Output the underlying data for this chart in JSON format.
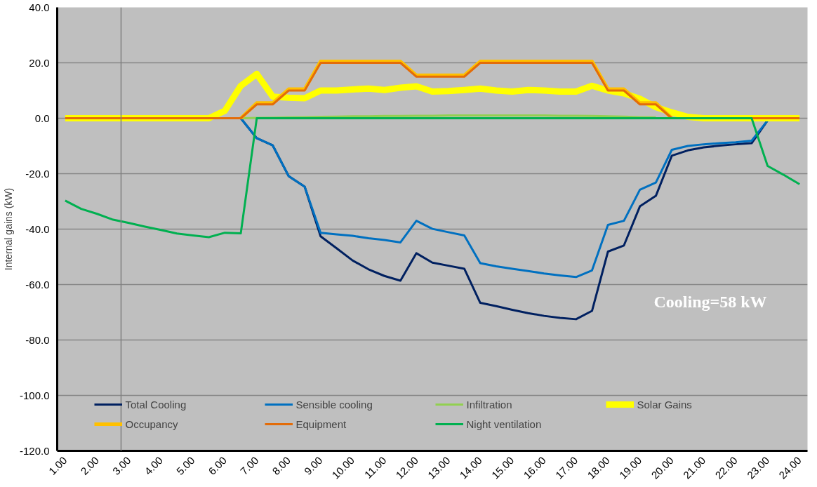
{
  "chart_data": {
    "type": "line",
    "ylabel": "Internal gains (kW)",
    "x": [
      1,
      1.5,
      2,
      2.5,
      3,
      3.5,
      4,
      4.5,
      5,
      5.5,
      6,
      6.5,
      7,
      7.5,
      8,
      8.5,
      9,
      9.5,
      10,
      10.5,
      11,
      11.5,
      12,
      12.5,
      13,
      13.5,
      14,
      14.5,
      15,
      15.5,
      16,
      16.5,
      17,
      17.5,
      18,
      18.5,
      19,
      19.5,
      20,
      20.5,
      21,
      21.5,
      22,
      22.5,
      23,
      23.5,
      24
    ],
    "xlim": [
      0.75,
      24.25
    ],
    "xticks": [
      {
        "value": 1,
        "label": "1.00"
      },
      {
        "value": 2,
        "label": "2.00"
      },
      {
        "value": 3,
        "label": "3.00"
      },
      {
        "value": 4,
        "label": "4.00"
      },
      {
        "value": 5,
        "label": "5.00"
      },
      {
        "value": 6,
        "label": "6.00"
      },
      {
        "value": 7,
        "label": "7.00"
      },
      {
        "value": 8,
        "label": "8.00"
      },
      {
        "value": 9,
        "label": "9.00"
      },
      {
        "value": 10,
        "label": "10.00"
      },
      {
        "value": 11,
        "label": "11.00"
      },
      {
        "value": 12,
        "label": "12.00"
      },
      {
        "value": 13,
        "label": "13.00"
      },
      {
        "value": 14,
        "label": "14.00"
      },
      {
        "value": 15,
        "label": "15.00"
      },
      {
        "value": 16,
        "label": "16.00"
      },
      {
        "value": 17,
        "label": "17.00"
      },
      {
        "value": 18,
        "label": "18.00"
      },
      {
        "value": 19,
        "label": "19.00"
      },
      {
        "value": 20,
        "label": "20.00"
      },
      {
        "value": 21,
        "label": "21.00"
      },
      {
        "value": 22,
        "label": "22.00"
      },
      {
        "value": 23,
        "label": "23.00"
      },
      {
        "value": 24,
        "label": "24.00"
      }
    ],
    "ylim": [
      -120,
      40
    ],
    "yticks": [
      {
        "value": -120,
        "label": "-120.0"
      },
      {
        "value": -100,
        "label": "-100.0"
      },
      {
        "value": -80,
        "label": "-80.0"
      },
      {
        "value": -60,
        "label": "-60.0"
      },
      {
        "value": -40,
        "label": "-40.0"
      },
      {
        "value": -20,
        "label": "-20.0"
      },
      {
        "value": 0,
        "label": "0.0"
      },
      {
        "value": 20,
        "label": "20.0"
      },
      {
        "value": 40,
        "label": "40.0"
      }
    ],
    "grid": "y",
    "legend": "bottom",
    "line_style": "solid",
    "marker": "none",
    "ref_lines": [
      {
        "axis": "x",
        "value": 2.75,
        "color": "#808080"
      }
    ],
    "annotations": [
      "Cooling=58 kW"
    ],
    "series": [
      {
        "name": "Total Cooling",
        "color": "#002060",
        "values": [
          null,
          null,
          null,
          null,
          null,
          null,
          null,
          null,
          null,
          null,
          null,
          0,
          -7.2,
          -9.8,
          -20.9,
          -24.7,
          -42.6,
          -46.9,
          -51.3,
          -54.5,
          -56.9,
          -58.6,
          -48.7,
          -52.1,
          -53.2,
          -54.3,
          -66.6,
          -67.8,
          -69.1,
          -70.3,
          -71.3,
          -72.0,
          -72.5,
          -69.5,
          -48.1,
          -45.9,
          -31.8,
          -28.0,
          -13.5,
          -11.6,
          -10.5,
          -9.9,
          -9.4,
          -9.0,
          -0.8,
          null,
          null
        ]
      },
      {
        "name": "Sensible cooling",
        "color": "#0070c0",
        "values": [
          null,
          null,
          null,
          null,
          null,
          null,
          null,
          null,
          null,
          null,
          null,
          0,
          -7.2,
          -9.8,
          -20.9,
          -24.7,
          -41.3,
          -41.9,
          -42.4,
          -43.3,
          -43.9,
          -44.8,
          -37.0,
          -39.9,
          -41.1,
          -42.3,
          -52.3,
          -53.4,
          -54.3,
          -55.1,
          -56.0,
          -56.7,
          -57.3,
          -54.9,
          -38.5,
          -37.0,
          -25.8,
          -23.2,
          -11.4,
          -10.0,
          -9.4,
          -9.0,
          -8.7,
          -8.1,
          -0.8,
          null,
          null
        ]
      },
      {
        "name": "Infiltration",
        "color": "#92d050",
        "values": [
          null,
          null,
          null,
          null,
          null,
          null,
          null,
          null,
          null,
          null,
          null,
          0,
          0.1,
          0.2,
          0.3,
          0.4,
          0.5,
          0.6,
          0.7,
          0.7,
          0.8,
          0.8,
          0.9,
          0.9,
          1.0,
          1.0,
          1.0,
          1.0,
          1.0,
          1.0,
          1.0,
          0.9,
          0.9,
          0.8,
          0.7,
          0.6,
          0.4,
          0.3,
          null,
          null,
          null,
          null,
          null,
          null,
          null,
          null,
          null
        ]
      },
      {
        "name": "Solar Gains",
        "color": "#ffff00",
        "values": [
          0,
          0,
          0,
          0,
          0,
          0,
          0,
          0,
          0,
          0,
          2.7,
          11.7,
          16.0,
          7.8,
          7.4,
          7.2,
          10.0,
          10.0,
          10.4,
          10.7,
          10.2,
          11.0,
          11.5,
          9.6,
          9.8,
          10.2,
          10.7,
          10.0,
          9.6,
          10.2,
          10.0,
          9.6,
          9.6,
          11.7,
          10.0,
          9.0,
          7.0,
          4.0,
          2.1,
          0.5,
          0,
          0,
          0,
          0,
          0,
          0,
          0
        ]
      },
      {
        "name": "Occupancy",
        "color": "#ffc000",
        "values": [
          null,
          null,
          null,
          null,
          null,
          null,
          null,
          null,
          null,
          null,
          null,
          0,
          5.5,
          5.5,
          10.5,
          10.5,
          20.5,
          20.5,
          20.5,
          20.5,
          20.5,
          20.5,
          15.5,
          15.5,
          15.5,
          15.5,
          20.5,
          20.5,
          20.5,
          20.5,
          20.5,
          20.5,
          20.5,
          20.5,
          10.5,
          10.5,
          5.5,
          5.5,
          0,
          null,
          null,
          null,
          null,
          null,
          null,
          null,
          null
        ]
      },
      {
        "name": "Equipment",
        "color": "#e36c09",
        "values": [
          0,
          0,
          0,
          0,
          0,
          0,
          0,
          0,
          0,
          0,
          0,
          0,
          5,
          5,
          10,
          10,
          20,
          20,
          20,
          20,
          20,
          20,
          15,
          15,
          15,
          15,
          20,
          20,
          20,
          20,
          20,
          20,
          20,
          20,
          10,
          10,
          5,
          5,
          0,
          0,
          0,
          0,
          0,
          0,
          0,
          0,
          0
        ]
      },
      {
        "name": "Night ventilation",
        "color": "#00b050",
        "values": [
          -29.7,
          -32.7,
          -34.5,
          -36.6,
          -37.8,
          -39.1,
          -40.3,
          -41.6,
          -42.3,
          -42.9,
          -41.3,
          -41.5,
          0,
          0,
          0,
          0,
          0,
          0,
          0,
          0,
          0,
          0,
          0,
          0,
          0,
          0,
          0,
          0,
          0,
          0,
          0,
          0,
          0,
          0,
          0,
          0,
          0,
          0,
          0,
          0,
          0,
          0,
          0,
          0,
          -17.2,
          -20.4,
          -23.8
        ]
      }
    ]
  }
}
